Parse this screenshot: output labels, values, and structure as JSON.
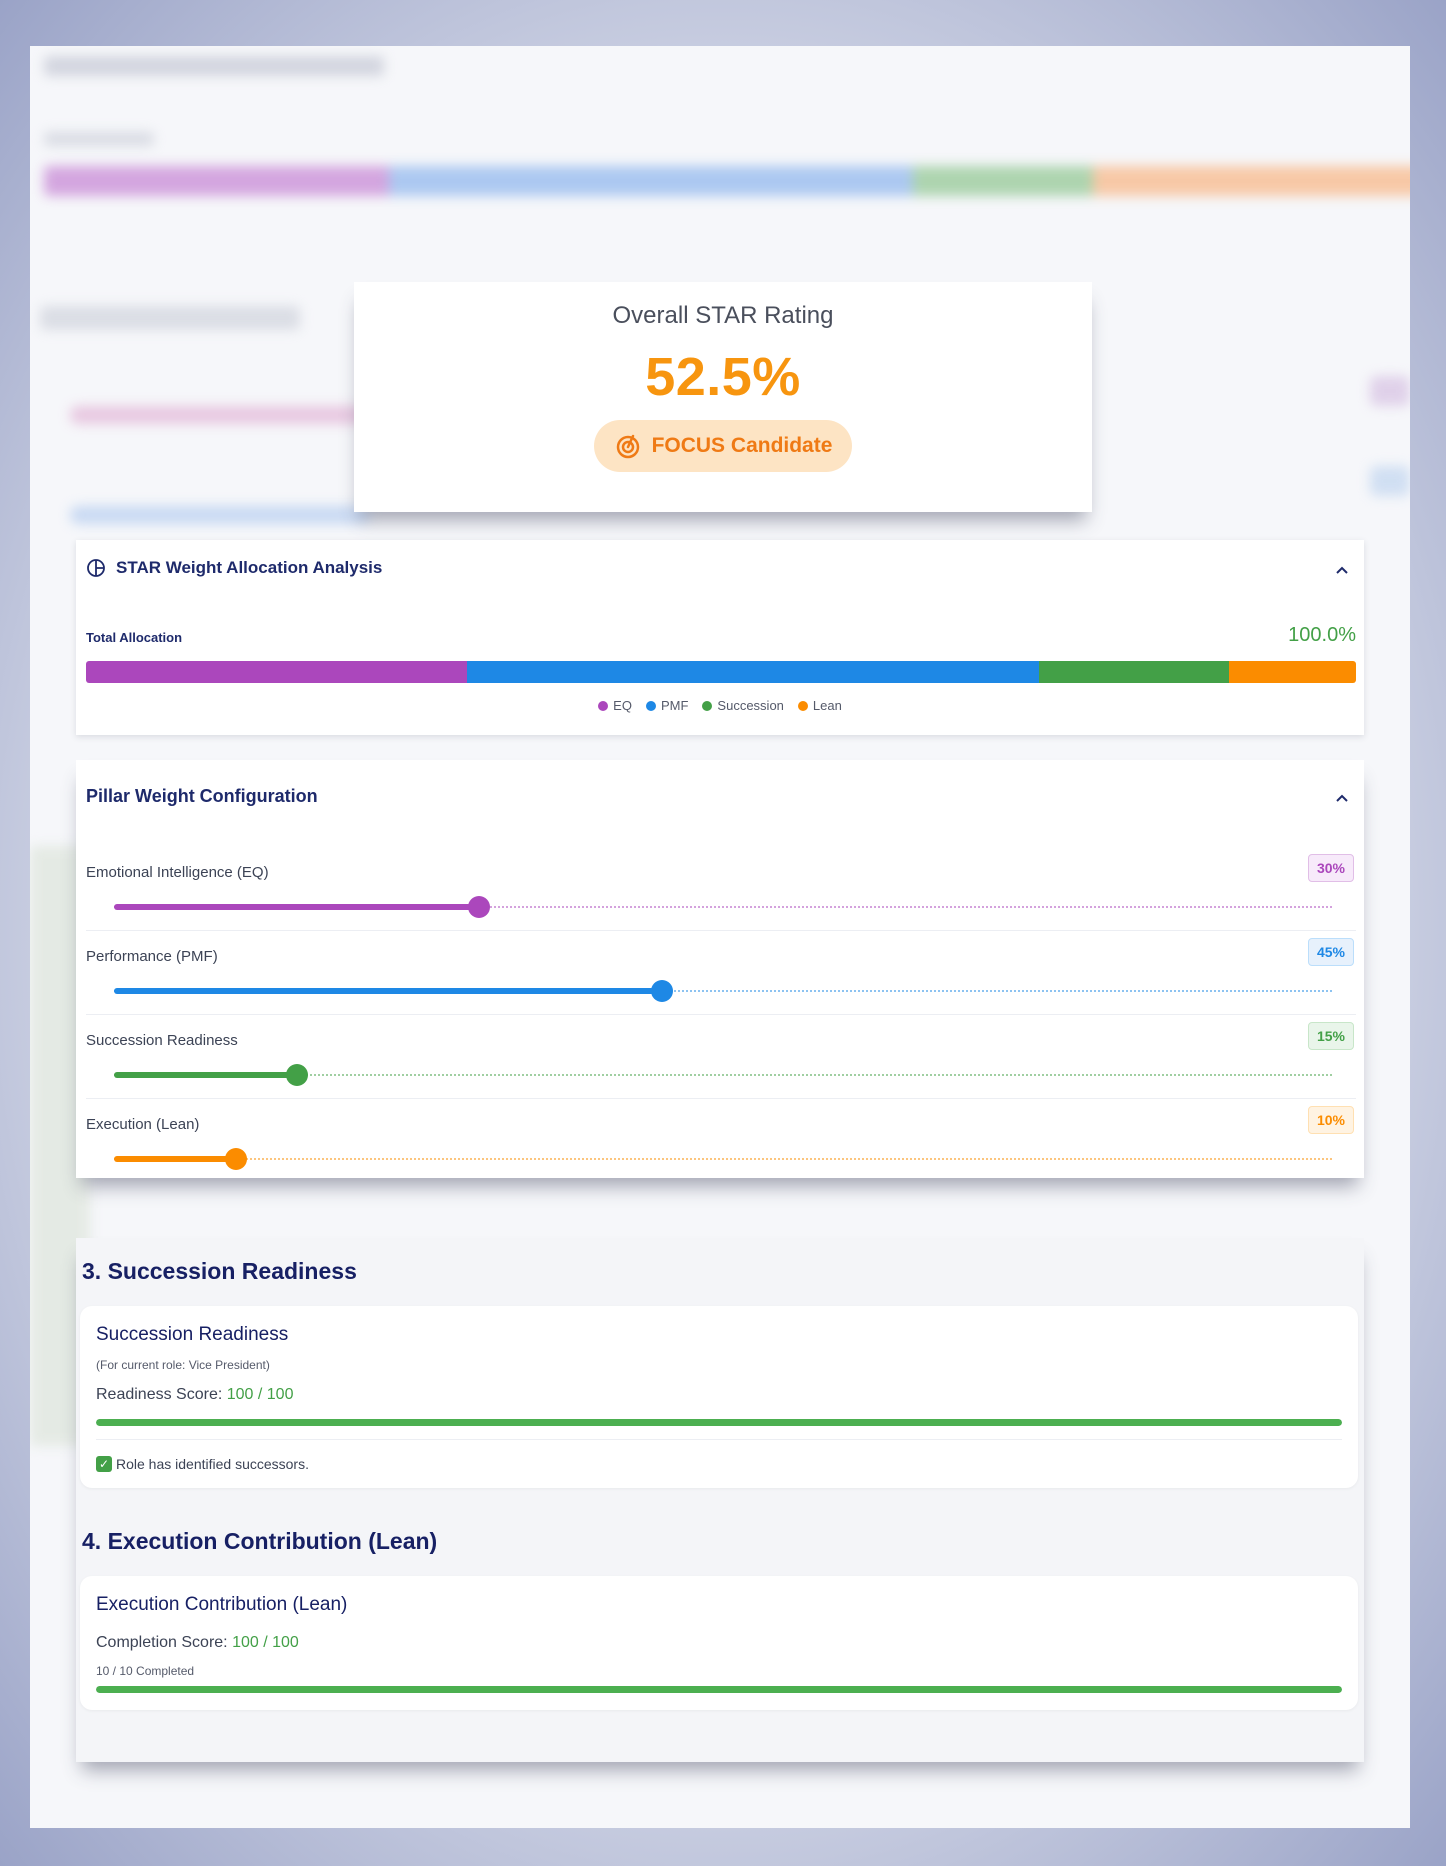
{
  "rating": {
    "title": "Overall STAR Rating",
    "value": "52.5%",
    "badge": "FOCUS Candidate",
    "badge_icon": "target-icon",
    "value_color": "#f7950f"
  },
  "allocation": {
    "title": "STAR Weight Allocation Analysis",
    "total_label": "Total Allocation",
    "total_value": "100.0%",
    "segments": [
      {
        "name": "EQ",
        "percent": 30,
        "color": "#ab47bc"
      },
      {
        "name": "PMF",
        "percent": 45,
        "color": "#1e88e5"
      },
      {
        "name": "Succession",
        "percent": 15,
        "color": "#43a047"
      },
      {
        "name": "Lean",
        "percent": 10,
        "color": "#fb8c00"
      }
    ]
  },
  "pillars": {
    "title": "Pillar Weight Configuration",
    "items": [
      {
        "label": "Emotional Intelligence (EQ)",
        "value": "30%",
        "fraction": 0.3,
        "color": "#ab47bc",
        "badge_bg": "#f7eafa",
        "badge_border": "#e1bee7"
      },
      {
        "label": "Performance (PMF)",
        "value": "45%",
        "fraction": 0.45,
        "color": "#1e88e5",
        "badge_bg": "#e7f1fc",
        "badge_border": "#bbdefb"
      },
      {
        "label": "Succession Readiness",
        "value": "15%",
        "fraction": 0.15,
        "color": "#43a047",
        "badge_bg": "#e9f5ea",
        "badge_border": "#c8e6c9"
      },
      {
        "label": "Execution (Lean)",
        "value": "10%",
        "fraction": 0.1,
        "color": "#fb8c00",
        "badge_bg": "#fff3e2",
        "badge_border": "#ffe0b2"
      }
    ]
  },
  "succession": {
    "heading": "3. Succession Readiness",
    "card_title": "Succession Readiness",
    "role_note": "(For current role: Vice President)",
    "score_label": "Readiness Score:",
    "score_value": "100 / 100",
    "progress": 1.0,
    "check_text": "Role has identified successors."
  },
  "execution": {
    "heading": "4. Execution Contribution (Lean)",
    "card_title": "Execution Contribution (Lean)",
    "score_label": "Completion Score:",
    "score_value": "100 / 100",
    "completed_text": "10 / 10 Completed",
    "progress": 1.0
  }
}
